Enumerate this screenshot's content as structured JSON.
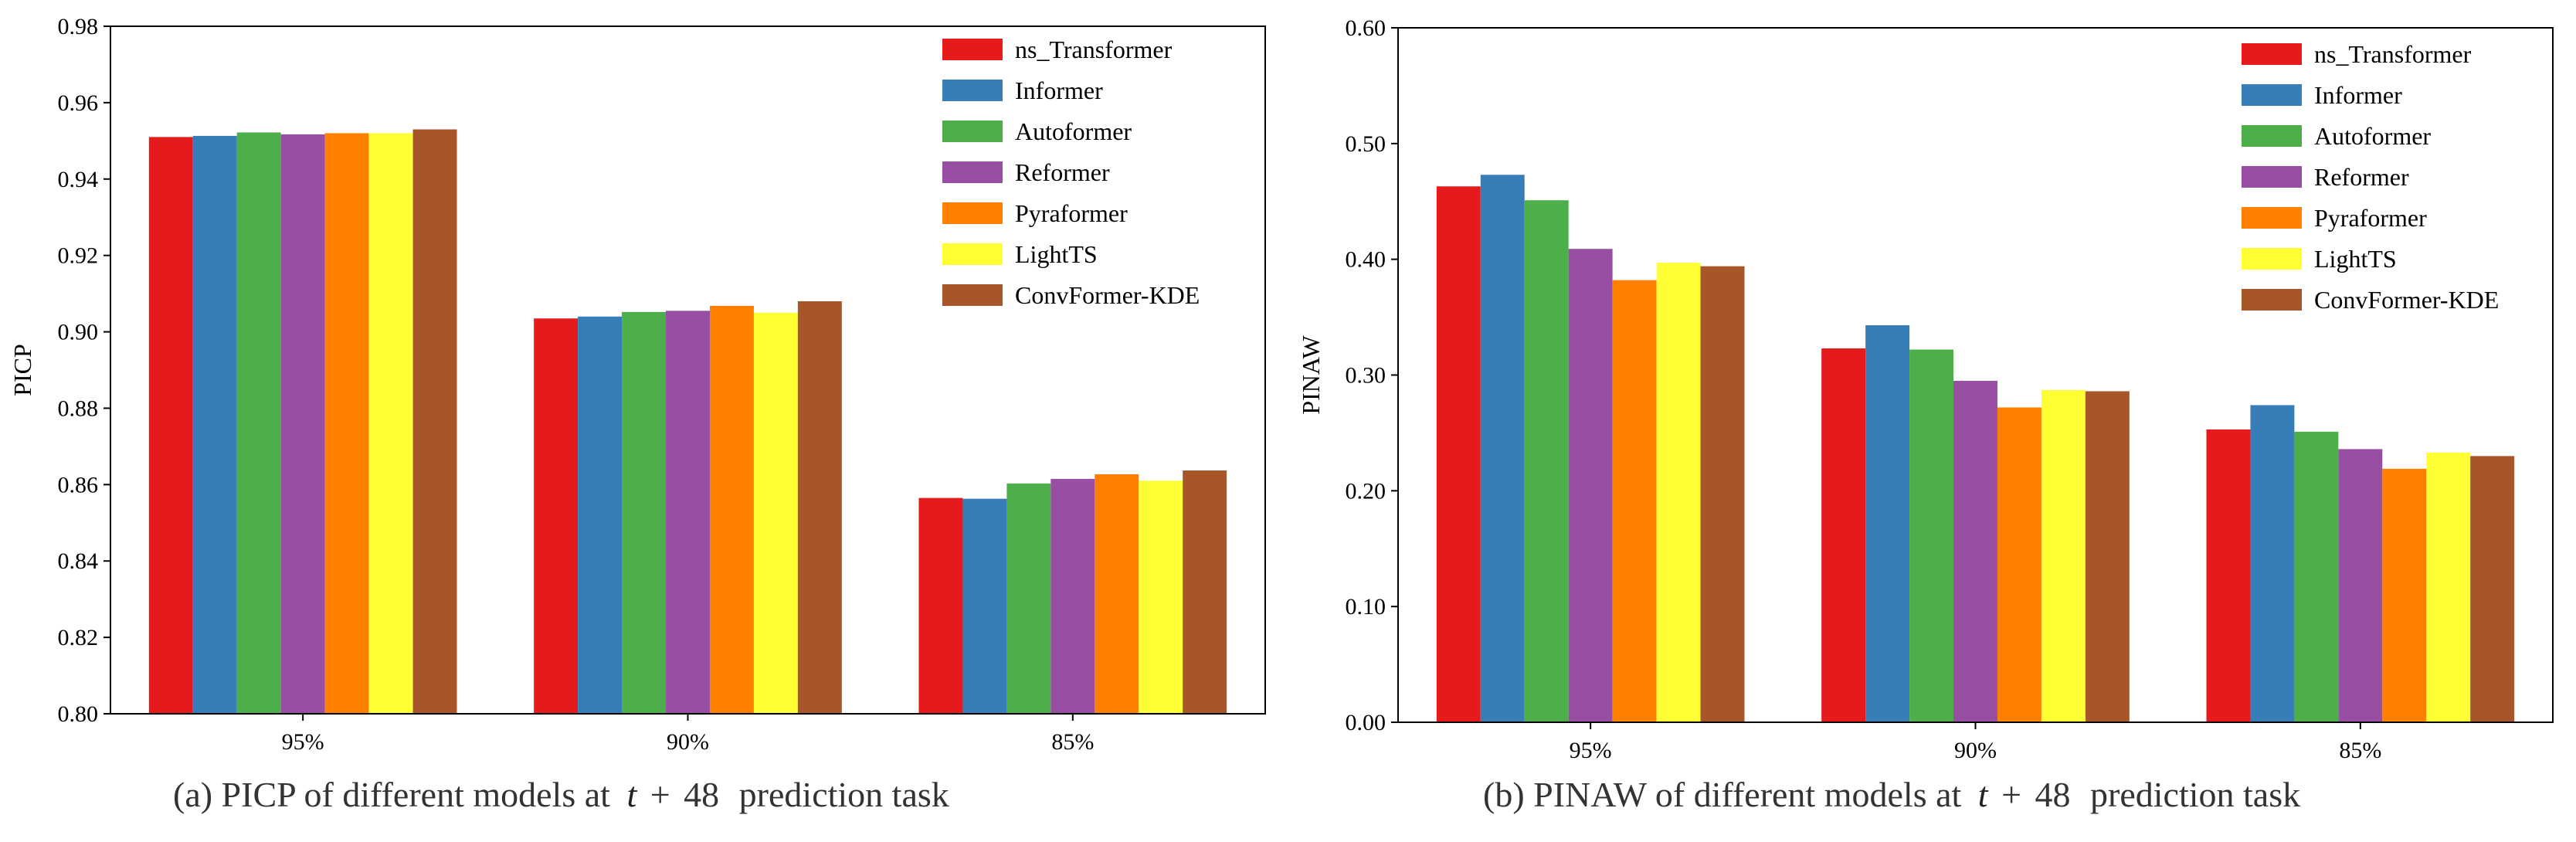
{
  "series_colors": [
    "#e41a1c",
    "#377eb8",
    "#4daf4a",
    "#984ea3",
    "#ff7f00",
    "#ffff33",
    "#a65628"
  ],
  "chart_data": [
    {
      "type": "bar",
      "title": "",
      "caption": {
        "prefix": "(a) PICP of different models at",
        "var": "t",
        "op": "+",
        "num": "48",
        "suffix": "prediction task"
      },
      "xlabel": "",
      "ylabel": "PICP",
      "ylim": [
        0.8,
        0.98
      ],
      "yticks": [
        "0.80",
        "0.82",
        "0.84",
        "0.86",
        "0.88",
        "0.90",
        "0.92",
        "0.94",
        "0.96",
        "0.98"
      ],
      "categories": [
        "95%",
        "90%",
        "85%"
      ],
      "legend_position": "top-right",
      "series": [
        {
          "name": "ns_Transformer",
          "values": [
            0.951,
            0.9035,
            0.8565
          ]
        },
        {
          "name": "Informer",
          "values": [
            0.9513,
            0.904,
            0.8563
          ]
        },
        {
          "name": "Autoformer",
          "values": [
            0.9522,
            0.9052,
            0.8603
          ]
        },
        {
          "name": "Reformer",
          "values": [
            0.9517,
            0.9055,
            0.8615
          ]
        },
        {
          "name": "Pyraformer",
          "values": [
            0.952,
            0.9068,
            0.8627
          ]
        },
        {
          "name": "LightTS",
          "values": [
            0.952,
            0.905,
            0.861
          ]
        },
        {
          "name": "ConvFormer-KDE",
          "values": [
            0.953,
            0.908,
            0.8637
          ]
        }
      ]
    },
    {
      "type": "bar",
      "title": "",
      "caption": {
        "prefix": "(b) PINAW of different models at",
        "var": "t",
        "op": "+",
        "num": "48",
        "suffix": "prediction task"
      },
      "xlabel": "",
      "ylabel": "PINAW",
      "ylim": [
        0.0,
        0.6
      ],
      "yticks": [
        "0.00",
        "0.10",
        "0.20",
        "0.30",
        "0.40",
        "0.50",
        "0.60"
      ],
      "categories": [
        "95%",
        "90%",
        "85%"
      ],
      "legend_position": "top-right",
      "series": [
        {
          "name": "ns_Transformer",
          "values": [
            0.463,
            0.323,
            0.253
          ]
        },
        {
          "name": "Informer",
          "values": [
            0.473,
            0.343,
            0.274
          ]
        },
        {
          "name": "Autoformer",
          "values": [
            0.451,
            0.322,
            0.251
          ]
        },
        {
          "name": "Reformer",
          "values": [
            0.409,
            0.295,
            0.236
          ]
        },
        {
          "name": "Pyraformer",
          "values": [
            0.382,
            0.272,
            0.219
          ]
        },
        {
          "name": "LightTS",
          "values": [
            0.397,
            0.287,
            0.233
          ]
        },
        {
          "name": "ConvFormer-KDE",
          "values": [
            0.394,
            0.286,
            0.23
          ]
        }
      ]
    }
  ]
}
